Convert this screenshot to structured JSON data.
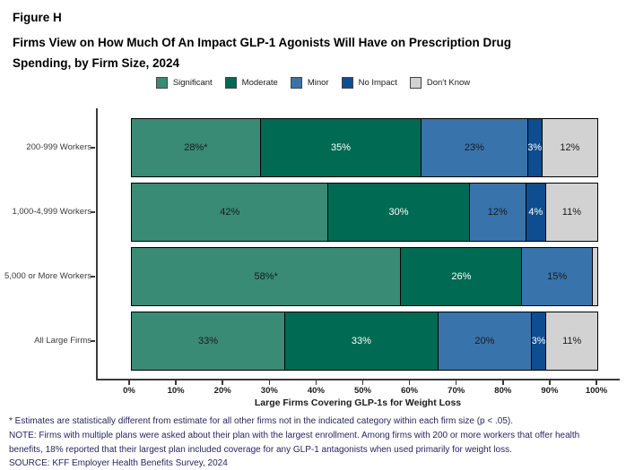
{
  "figure": {
    "label": "Figure H",
    "title_lines": [
      "Firms View on How Much Of An Impact GLP-1 Agonists Will Have on Prescription Drug",
      "Spending, by Firm Size, 2024"
    ]
  },
  "chart_data": {
    "type": "bar",
    "orientation": "horizontal",
    "stacked": true,
    "title": "Firms View on How Much Of An Impact GLP-1 Agonists Will Have on Prescription Drug Spending, by Firm Size, 2024",
    "xlabel": "Large Firms Covering GLP-1s for Weight Loss",
    "ylabel": "",
    "xlim": [
      0,
      100
    ],
    "grid": false,
    "legend_position": "top",
    "x_ticks": [
      "0%",
      "10%",
      "20%",
      "30%",
      "40%",
      "50%",
      "60%",
      "70%",
      "80%",
      "90%",
      "100%"
    ],
    "categories": [
      "200-999 Workers",
      "1,000-4,999 Workers",
      "5,000 or More Workers",
      "All Large Firms"
    ],
    "series": [
      {
        "name": "Significant",
        "color": "#398B75",
        "label_color": "#1a1a1a",
        "values": [
          28,
          42,
          58,
          33
        ],
        "labels": [
          "28%*",
          "42%",
          "58%*",
          "33%"
        ]
      },
      {
        "name": "Moderate",
        "color": "#006A52",
        "label_color": "#ffffff",
        "values": [
          35,
          30,
          26,
          33
        ],
        "labels": [
          "35%",
          "30%",
          "26%",
          "33%"
        ]
      },
      {
        "name": "Minor",
        "color": "#3973AC",
        "label_color": "#1a1a1a",
        "values": [
          23,
          12,
          15,
          20
        ],
        "labels": [
          "23%",
          "12%",
          "15%",
          "20%"
        ]
      },
      {
        "name": "No Impact",
        "color": "#0E4D8F",
        "label_color": "#ffffff",
        "values": [
          3,
          4,
          0,
          3
        ],
        "labels": [
          "3%",
          "4%",
          "",
          "3%"
        ]
      },
      {
        "name": "Don't Know",
        "color": "#D2D2D2",
        "label_color": "#1a1a1a",
        "values": [
          12,
          11,
          1,
          11
        ],
        "labels": [
          "12%",
          "11%",
          "",
          "11%"
        ]
      }
    ]
  },
  "footnotes": [
    "* Estimates are statistically different from estimate for all other firms not in the indicated category within each firm size (p < .05).",
    "NOTE: Firms with multiple plans were asked about their plan with the largest enrollment.  Among firms with 200 or more workers that offer health benefits, 18% reported that their largest plan included coverage for any GLP-1 antagonists when used primarily for weight loss.",
    "SOURCE: KFF Employer Health Benefits Survey, 2024"
  ],
  "colors": {
    "axis": "#3a3a3a",
    "footnote_text": "#26265E",
    "title_text": "#000000"
  }
}
